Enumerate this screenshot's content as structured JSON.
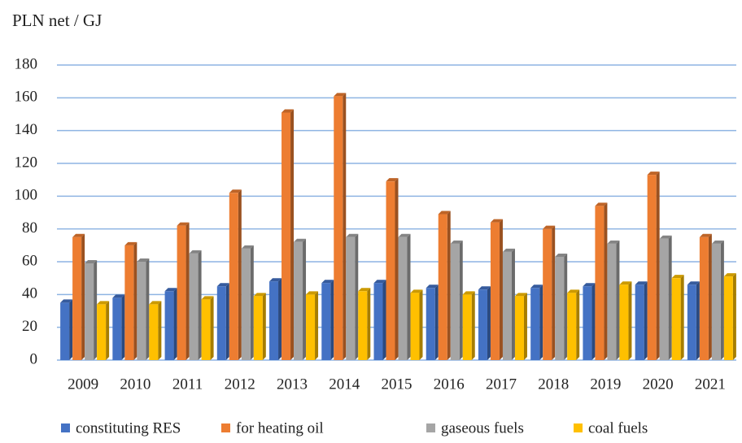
{
  "chart_data": {
    "type": "bar",
    "title": "PLN net / GJ",
    "categories": [
      "2009",
      "2010",
      "2011",
      "2012",
      "2013",
      "2014",
      "2015",
      "2016",
      "2017",
      "2018",
      "2019",
      "2020",
      "2021"
    ],
    "series": [
      {
        "name": "constituting RES",
        "color": "#4472c4",
        "values": [
          35,
          38,
          42,
          45,
          48,
          47,
          47,
          44,
          43,
          44,
          45,
          46,
          46
        ]
      },
      {
        "name": "for heating oil",
        "color": "#ed7d31",
        "values": [
          75,
          70,
          82,
          102,
          151,
          161,
          109,
          89,
          84,
          80,
          94,
          113,
          75
        ]
      },
      {
        "name": "gaseous fuels",
        "color": "#a5a5a5",
        "values": [
          59,
          60,
          65,
          68,
          72,
          75,
          75,
          71,
          66,
          63,
          71,
          74,
          71
        ]
      },
      {
        "name": "coal fuels",
        "color": "#ffc000",
        "values": [
          34,
          34,
          37,
          39,
          40,
          42,
          41,
          40,
          39,
          41,
          46,
          50,
          51
        ]
      }
    ],
    "ylim": [
      0,
      180
    ],
    "yticks": [
      0,
      20,
      40,
      60,
      80,
      100,
      120,
      140,
      160,
      180
    ],
    "grid": true,
    "legend": "bottom"
  }
}
